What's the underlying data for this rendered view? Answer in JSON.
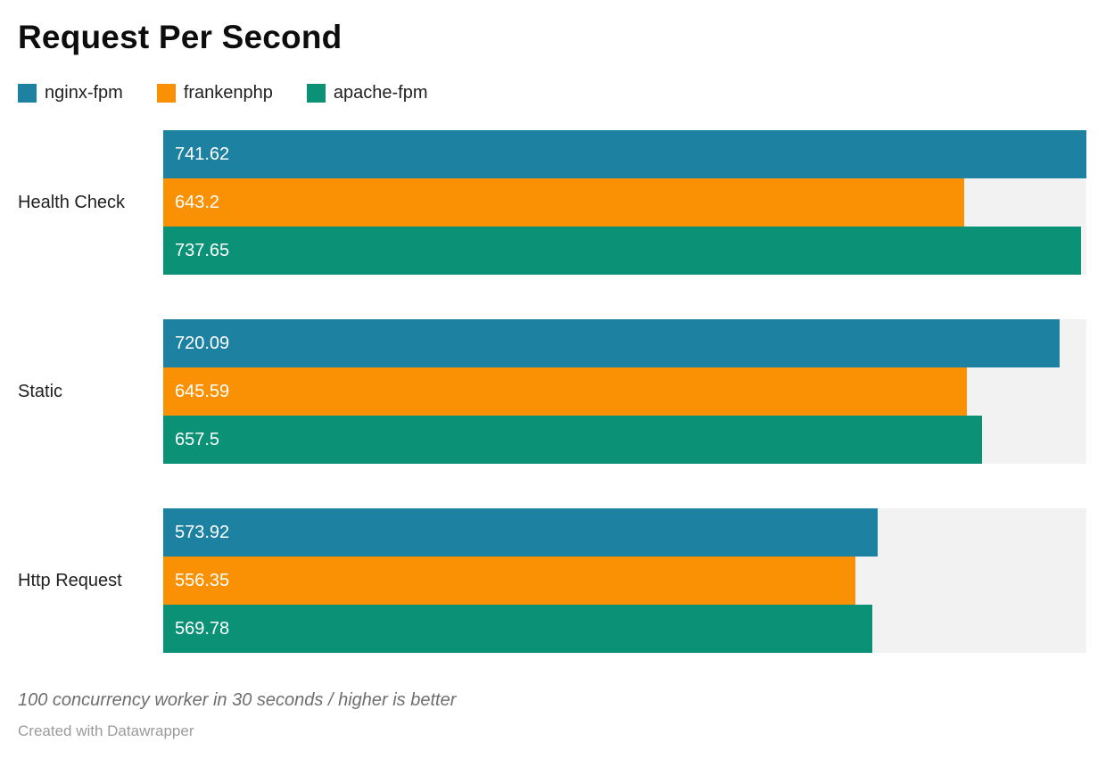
{
  "title": "Request Per Second",
  "legend": [
    {
      "label": "nginx-fpm",
      "color": "#1d81a2"
    },
    {
      "label": "frankenphp",
      "color": "#fa9105"
    },
    {
      "label": "apache-fpm",
      "color": "#0b9175"
    }
  ],
  "chart_data": {
    "type": "bar",
    "orientation": "horizontal",
    "title": "Request Per Second",
    "categories": [
      "Health Check",
      "Static",
      "Http Request"
    ],
    "series": [
      {
        "name": "nginx-fpm",
        "color": "#1d81a2",
        "values": [
          741.62,
          720.09,
          573.92
        ]
      },
      {
        "name": "frankenphp",
        "color": "#fa9105",
        "values": [
          643.2,
          645.59,
          556.35
        ]
      },
      {
        "name": "apache-fpm",
        "color": "#0b9175",
        "values": [
          737.65,
          657.5,
          569.78
        ]
      }
    ],
    "xlim": [
      0,
      741.62
    ],
    "value_labels": "inside-start",
    "legend_position": "top",
    "grid": false,
    "track_color": "#f2f2f2",
    "note": "100 concurrency worker in 30 seconds / higher is better"
  },
  "footer": {
    "note": "100 concurrency worker in 30 seconds / higher is better",
    "attribution": "Created with Datawrapper"
  }
}
